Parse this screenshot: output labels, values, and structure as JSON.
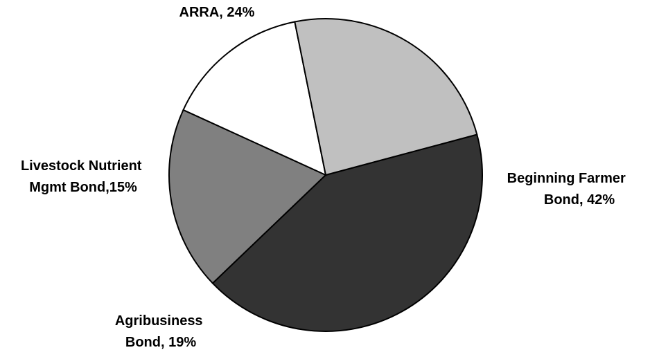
{
  "chart_data": {
    "type": "pie",
    "slices": [
      {
        "label_lines": [
          "Beginning Farmer",
          "Bond, 42%"
        ],
        "value": 42,
        "color": "#333333"
      },
      {
        "label_lines": [
          "Agribusiness",
          "Bond, 19%"
        ],
        "value": 19,
        "color": "#808080"
      },
      {
        "label_lines": [
          "Livestock Nutrient",
          "Mgmt Bond,15%"
        ],
        "value": 15,
        "color": "#ffffff"
      },
      {
        "label_lines": [
          "ARRA, 24%"
        ],
        "value": 24,
        "color": "#c0c0c0"
      }
    ],
    "legend": "none"
  }
}
